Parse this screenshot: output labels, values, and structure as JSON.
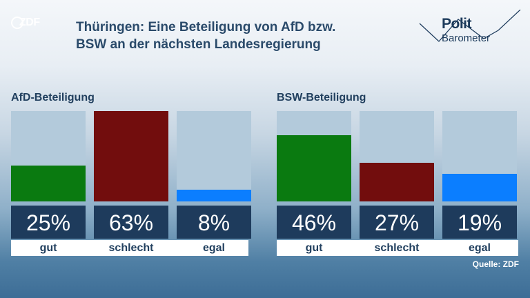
{
  "header": {
    "logo_text": "ZDF",
    "title_line1": "Thüringen: Eine Beteiligung von AfD bzw.",
    "title_line2": "BSW an der nächsten Landesregierung",
    "brand_line1": "Polit",
    "brand_line2": "Barometer"
  },
  "source": "Quelle: ZDF",
  "colors": {
    "gut": "#0a7a10",
    "schlecht": "#720d0d",
    "egal": "#0b7eff",
    "bar_bg": "#b3cadb",
    "value_box": "#1e3b5c"
  },
  "chart_data": [
    {
      "type": "bar",
      "title": "AfD-Beteiligung",
      "categories": [
        "gut",
        "schlecht",
        "egal"
      ],
      "values": [
        25,
        63,
        8
      ],
      "value_labels": [
        "25%",
        "63%",
        "8%"
      ],
      "ylim": [
        0,
        63
      ]
    },
    {
      "type": "bar",
      "title": "BSW-Beteiligung",
      "categories": [
        "gut",
        "schlecht",
        "egal"
      ],
      "values": [
        46,
        27,
        19
      ],
      "value_labels": [
        "46%",
        "27%",
        "19%"
      ],
      "ylim": [
        0,
        63
      ]
    }
  ]
}
